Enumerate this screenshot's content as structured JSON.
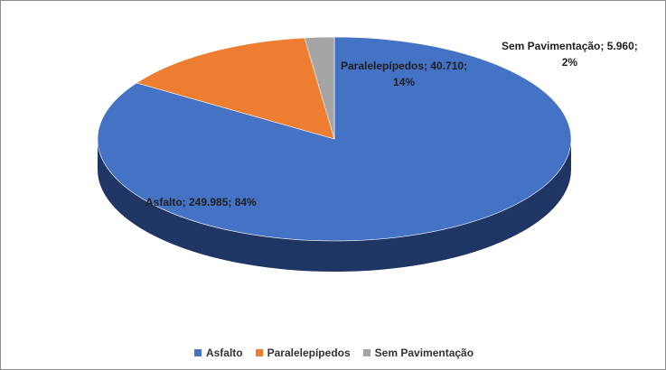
{
  "chart_data": {
    "type": "pie",
    "title": "",
    "categories": [
      "Asfalto",
      "Paralelepípedos",
      "Sem Pavimentação"
    ],
    "values": [
      249985,
      40710,
      5960
    ],
    "percentages": [
      84,
      14,
      2
    ],
    "data_labels": [
      [
        "Asfalto; 249.985; 84%"
      ],
      [
        "Paralelepípedos; 40.710;",
        "14%"
      ],
      [
        "Sem Pavimentação; 5.960;",
        "2%"
      ]
    ],
    "colors": {
      "top": [
        "#4472C4",
        "#ED7D31",
        "#A5A5A5"
      ],
      "side": [
        "#1F3564",
        "#7A3A12",
        "#5F5F5F"
      ]
    },
    "legend_position": "bottom",
    "style": "3d"
  },
  "legend": {
    "items": [
      {
        "label": "Asfalto",
        "color": "#4472C4"
      },
      {
        "label": "Paralelepípedos",
        "color": "#ED7D31"
      },
      {
        "label": "Sem Pavimentação",
        "color": "#A5A5A5"
      }
    ]
  }
}
